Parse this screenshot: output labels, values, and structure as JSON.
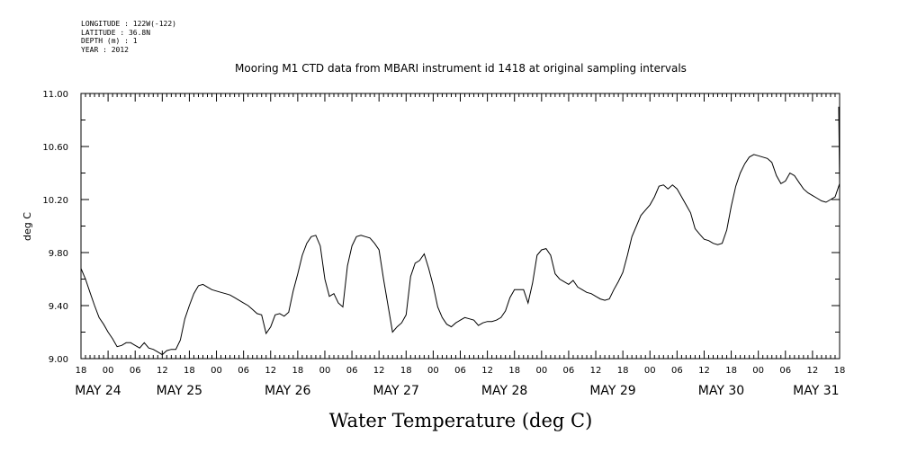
{
  "metadata": [
    "LONGITUDE : 122W(-122)",
    "LATITUDE : 36.8N",
    "DEPTH (m) : 1",
    "YEAR : 2012"
  ],
  "chart_data": {
    "type": "line",
    "title": "Mooring M1 CTD data from MBARI instrument id 1418 at original sampling intervals",
    "xlabel": "Water Temperature (deg C)",
    "ylabel": "deg C",
    "ylim": [
      9.0,
      11.0
    ],
    "yticks": [
      "9.00",
      "9.40",
      "9.80",
      "10.20",
      "10.60",
      "11.00"
    ],
    "xlim_hours": [
      0,
      168
    ],
    "hour_ticks": [
      "18",
      "00",
      "06",
      "12",
      "18",
      "00",
      "06",
      "12",
      "18",
      "00",
      "06",
      "12",
      "18",
      "00",
      "06",
      "12",
      "18",
      "00",
      "06",
      "12",
      "18",
      "00",
      "06",
      "12",
      "18",
      "00",
      "06",
      "12",
      "18"
    ],
    "date_labels": [
      {
        "label": "MAY 24",
        "hour": 0
      },
      {
        "label": "MAY 25",
        "hour": 18
      },
      {
        "label": "MAY 26",
        "hour": 42
      },
      {
        "label": "MAY 27",
        "hour": 66
      },
      {
        "label": "MAY 28",
        "hour": 90
      },
      {
        "label": "MAY 29",
        "hour": 114
      },
      {
        "label": "MAY 30",
        "hour": 138
      },
      {
        "label": "MAY 31",
        "hour": 159
      }
    ],
    "series": [
      {
        "color": "#000000",
        "points": [
          [
            0,
            9.68
          ],
          [
            1,
            9.6
          ],
          [
            2,
            9.5
          ],
          [
            3,
            9.4
          ],
          [
            4,
            9.31
          ],
          [
            5,
            9.26
          ],
          [
            6,
            9.2
          ],
          [
            7,
            9.15
          ],
          [
            8,
            9.09
          ],
          [
            9,
            9.1
          ],
          [
            10,
            9.12
          ],
          [
            11,
            9.12
          ],
          [
            12,
            9.1
          ],
          [
            13,
            9.08
          ],
          [
            14,
            9.12
          ],
          [
            15,
            9.08
          ],
          [
            16,
            9.07
          ],
          [
            17,
            9.05
          ],
          [
            18,
            9.03
          ],
          [
            19,
            9.06
          ],
          [
            20,
            9.07
          ],
          [
            21,
            9.07
          ],
          [
            22,
            9.14
          ],
          [
            23,
            9.3
          ],
          [
            24,
            9.4
          ],
          [
            25,
            9.49
          ],
          [
            26,
            9.55
          ],
          [
            27,
            9.56
          ],
          [
            28,
            9.54
          ],
          [
            29,
            9.52
          ],
          [
            30,
            9.51
          ],
          [
            31,
            9.5
          ],
          [
            32,
            9.49
          ],
          [
            33,
            9.48
          ],
          [
            34,
            9.46
          ],
          [
            35,
            9.44
          ],
          [
            36,
            9.42
          ],
          [
            37,
            9.4
          ],
          [
            38,
            9.37
          ],
          [
            39,
            9.34
          ],
          [
            40,
            9.33
          ],
          [
            41,
            9.19
          ],
          [
            42,
            9.24
          ],
          [
            43,
            9.33
          ],
          [
            44,
            9.34
          ],
          [
            45,
            9.32
          ],
          [
            46,
            9.35
          ],
          [
            47,
            9.51
          ],
          [
            48,
            9.64
          ],
          [
            49,
            9.78
          ],
          [
            50,
            9.87
          ],
          [
            51,
            9.92
          ],
          [
            52,
            9.93
          ],
          [
            53,
            9.85
          ],
          [
            54,
            9.6
          ],
          [
            55,
            9.47
          ],
          [
            56,
            9.49
          ],
          [
            57,
            9.42
          ],
          [
            58,
            9.39
          ],
          [
            59,
            9.7
          ],
          [
            60,
            9.85
          ],
          [
            61,
            9.92
          ],
          [
            62,
            9.93
          ],
          [
            63,
            9.92
          ],
          [
            64,
            9.91
          ],
          [
            65,
            9.87
          ],
          [
            66,
            9.82
          ],
          [
            67,
            9.6
          ],
          [
            68,
            9.4
          ],
          [
            69,
            9.2
          ],
          [
            70,
            9.24
          ],
          [
            71,
            9.27
          ],
          [
            72,
            9.33
          ],
          [
            73,
            9.62
          ],
          [
            74,
            9.72
          ],
          [
            75,
            9.74
          ],
          [
            76,
            9.79
          ],
          [
            77,
            9.68
          ],
          [
            78,
            9.55
          ],
          [
            79,
            9.39
          ],
          [
            80,
            9.31
          ],
          [
            81,
            9.26
          ],
          [
            82,
            9.24
          ],
          [
            83,
            9.27
          ],
          [
            84,
            9.29
          ],
          [
            85,
            9.31
          ],
          [
            86,
            9.3
          ],
          [
            87,
            9.29
          ],
          [
            88,
            9.25
          ],
          [
            89,
            9.27
          ],
          [
            90,
            9.28
          ],
          [
            91,
            9.28
          ],
          [
            92,
            9.29
          ],
          [
            93,
            9.31
          ],
          [
            94,
            9.36
          ],
          [
            95,
            9.46
          ],
          [
            96,
            9.52
          ],
          [
            97,
            9.52
          ],
          [
            98,
            9.52
          ],
          [
            99,
            9.42
          ],
          [
            100,
            9.57
          ],
          [
            101,
            9.78
          ],
          [
            102,
            9.82
          ],
          [
            103,
            9.83
          ],
          [
            104,
            9.78
          ],
          [
            105,
            9.64
          ],
          [
            106,
            9.6
          ],
          [
            107,
            9.58
          ],
          [
            108,
            9.56
          ],
          [
            109,
            9.59
          ],
          [
            110,
            9.54
          ],
          [
            111,
            9.52
          ],
          [
            112,
            9.5
          ],
          [
            113,
            9.49
          ],
          [
            114,
            9.47
          ],
          [
            115,
            9.45
          ],
          [
            116,
            9.44
          ],
          [
            117,
            9.45
          ],
          [
            118,
            9.52
          ],
          [
            119,
            9.58
          ],
          [
            120,
            9.65
          ],
          [
            121,
            9.78
          ],
          [
            122,
            9.92
          ],
          [
            123,
            10.0
          ],
          [
            124,
            10.08
          ],
          [
            125,
            10.12
          ],
          [
            126,
            10.16
          ],
          [
            127,
            10.22
          ],
          [
            128,
            10.3
          ],
          [
            129,
            10.31
          ],
          [
            130,
            10.28
          ],
          [
            131,
            10.31
          ],
          [
            132,
            10.28
          ],
          [
            133,
            10.22
          ],
          [
            134,
            10.16
          ],
          [
            135,
            10.1
          ],
          [
            136,
            9.98
          ],
          [
            137,
            9.94
          ],
          [
            138,
            9.9
          ],
          [
            139,
            9.89
          ],
          [
            140,
            9.87
          ],
          [
            141,
            9.86
          ],
          [
            142,
            9.87
          ],
          [
            143,
            9.97
          ],
          [
            144,
            10.15
          ],
          [
            145,
            10.3
          ],
          [
            146,
            10.4
          ],
          [
            147,
            10.47
          ],
          [
            148,
            10.52
          ],
          [
            149,
            10.54
          ],
          [
            150,
            10.53
          ],
          [
            151,
            10.52
          ],
          [
            152,
            10.51
          ],
          [
            153,
            10.48
          ],
          [
            154,
            10.38
          ],
          [
            155,
            10.32
          ],
          [
            156,
            10.34
          ],
          [
            157,
            10.4
          ],
          [
            158,
            10.38
          ],
          [
            159,
            10.33
          ],
          [
            160,
            10.28
          ],
          [
            161,
            10.25
          ],
          [
            162,
            10.23
          ],
          [
            163,
            10.21
          ],
          [
            164,
            10.19
          ],
          [
            165,
            10.18
          ],
          [
            166,
            10.2
          ],
          [
            167,
            10.22
          ],
          [
            168,
            10.32
          ],
          [
            169,
            10.58
          ],
          [
            170,
            10.9
          ]
        ]
      }
    ]
  }
}
